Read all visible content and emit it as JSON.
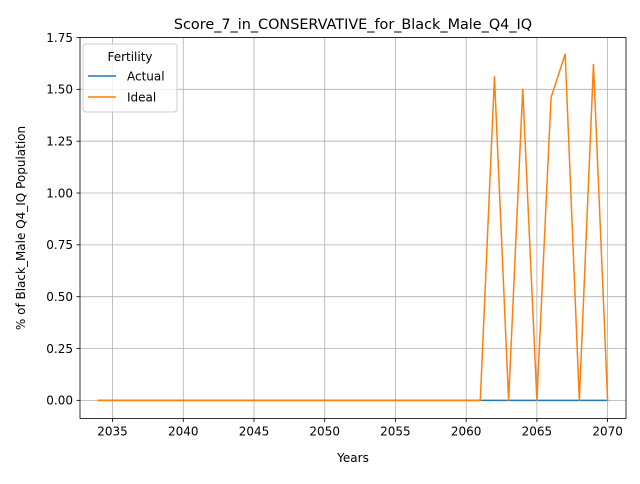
{
  "chart_data": {
    "type": "line",
    "title": "Score_7_in_CONSERVATIVE_for_Black_Male_Q4_IQ",
    "xlabel": "Years",
    "ylabel": "% of Black_Male Q4_IQ Population",
    "xlim": [
      2032.7,
      2071.3
    ],
    "ylim": [
      -0.0875,
      1.75
    ],
    "xticks": [
      2035,
      2040,
      2045,
      2050,
      2055,
      2060,
      2065,
      2070
    ],
    "xtick_labels": [
      "2035",
      "2040",
      "2045",
      "2050",
      "2055",
      "2060",
      "2065",
      "2070"
    ],
    "yticks": [
      0.0,
      0.25,
      0.5,
      0.75,
      1.0,
      1.25,
      1.5,
      1.75
    ],
    "ytick_labels": [
      "0.00",
      "0.25",
      "0.50",
      "0.75",
      "1.00",
      "1.25",
      "1.50",
      "1.75"
    ],
    "grid": true,
    "legend": {
      "title": "Fertility",
      "placement": "top-left"
    },
    "x": [
      2034,
      2035,
      2036,
      2037,
      2038,
      2039,
      2040,
      2041,
      2042,
      2043,
      2044,
      2045,
      2046,
      2047,
      2048,
      2049,
      2050,
      2051,
      2052,
      2053,
      2054,
      2055,
      2056,
      2057,
      2058,
      2059,
      2060,
      2061,
      2062,
      2063,
      2064,
      2065,
      2066,
      2067,
      2068,
      2069,
      2070
    ],
    "series": [
      {
        "name": "Actual",
        "color": "#1f77b4",
        "values": [
          0,
          0,
          0,
          0,
          0,
          0,
          0,
          0,
          0,
          0,
          0,
          0,
          0,
          0,
          0,
          0,
          0,
          0,
          0,
          0,
          0,
          0,
          0,
          0,
          0,
          0,
          0,
          0,
          0,
          0,
          0,
          0,
          0,
          0,
          0,
          0,
          0
        ]
      },
      {
        "name": "Ideal",
        "color": "#ff7f0e",
        "values": [
          0,
          0,
          0,
          0,
          0,
          0,
          0,
          0,
          0,
          0,
          0,
          0,
          0,
          0,
          0,
          0,
          0,
          0,
          0,
          0,
          0,
          0,
          0,
          0,
          0,
          0,
          0,
          0,
          1.56,
          0,
          1.5,
          0,
          1.46,
          1.67,
          0,
          1.62,
          0
        ]
      }
    ]
  }
}
